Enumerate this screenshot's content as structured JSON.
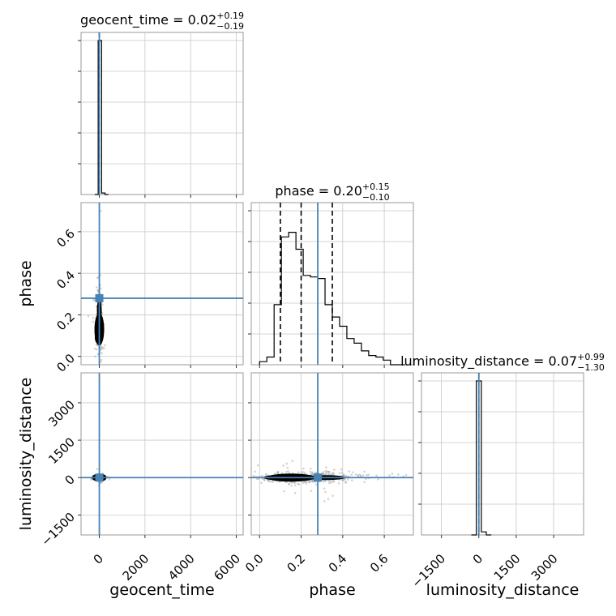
{
  "chart_data": {
    "type": "corner",
    "parameters": [
      "geocent_time",
      "phase",
      "luminosity_distance"
    ],
    "truth": {
      "geocent_time": 0.0,
      "phase": 0.28,
      "luminosity_distance": 0.0
    },
    "truth_color": "#4682b4",
    "grid": true,
    "titles": {
      "geocent_time": {
        "label": "geocent_time",
        "median": "0.02",
        "plus": "+0.19",
        "minus": "−0.19"
      },
      "phase": {
        "label": "phase",
        "median": "0.20",
        "plus": "+0.15",
        "minus": "−0.10"
      },
      "luminosity_distance": {
        "label": "luminosity_distance",
        "median": "0.07",
        "plus": "+0.99",
        "minus": "−1.30"
      }
    },
    "axes": {
      "geocent_time": {
        "range": [
          -800,
          6300
        ],
        "ticks": [
          0,
          2000,
          4000,
          6000
        ],
        "tick_labels": [
          "0",
          "2000",
          "4000",
          "6000"
        ]
      },
      "phase": {
        "range": [
          -0.04,
          0.74
        ],
        "ticks": [
          0.0,
          0.2,
          0.4,
          0.6
        ],
        "tick_labels": [
          "0.0",
          "0.2",
          "0.4",
          "0.6"
        ]
      },
      "luminosity_distance": {
        "range": [
          -2300,
          4200
        ],
        "ticks": [
          -1500,
          0,
          1500,
          3000
        ],
        "tick_labels": [
          "−1500",
          "0",
          "1500",
          "3000"
        ]
      }
    },
    "histograms": {
      "geocent_time": {
        "bin_edges": [
          -200,
          -50,
          100,
          250,
          400
        ],
        "heights": [
          0.0,
          1.0,
          0.01,
          0.0
        ]
      },
      "phase": {
        "bin_edges": [
          0.0,
          0.035,
          0.07,
          0.105,
          0.14,
          0.175,
          0.21,
          0.245,
          0.28,
          0.315,
          0.35,
          0.385,
          0.42,
          0.455,
          0.49,
          0.525,
          0.56,
          0.595,
          0.63,
          0.665,
          0.7
        ],
        "heights": [
          0.02,
          0.05,
          0.39,
          0.83,
          0.86,
          0.75,
          0.58,
          0.57,
          0.56,
          0.39,
          0.31,
          0.25,
          0.17,
          0.14,
          0.09,
          0.06,
          0.05,
          0.03,
          0.0,
          0.0
        ]
      },
      "luminosity_distance": {
        "bin_edges": [
          -300,
          -100,
          100,
          300,
          500
        ],
        "heights": [
          0.0,
          1.0,
          0.02,
          0.0
        ]
      }
    },
    "quantiles": {
      "phase": [
        0.1,
        0.2,
        0.35
      ],
      "geocent_time": [
        0.02
      ],
      "luminosity_distance": [
        0.07
      ]
    }
  }
}
